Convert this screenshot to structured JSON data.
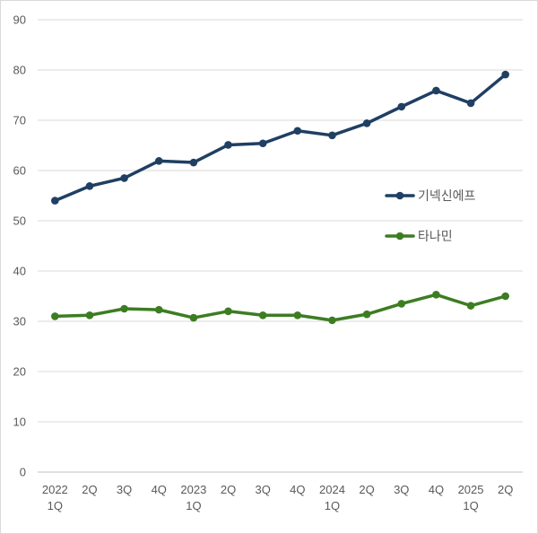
{
  "chart_data": {
    "type": "line",
    "title": "",
    "xlabel": "",
    "ylabel": "",
    "ylim": [
      0,
      90
    ],
    "yticks": [
      0,
      10,
      20,
      30,
      40,
      50,
      60,
      70,
      80,
      90
    ],
    "grid": true,
    "legend_position": "right",
    "categories": [
      [
        "2022",
        "1Q"
      ],
      [
        "2Q"
      ],
      [
        "3Q"
      ],
      [
        "4Q"
      ],
      [
        "2023",
        "1Q"
      ],
      [
        "2Q"
      ],
      [
        "3Q"
      ],
      [
        "4Q"
      ],
      [
        "2024",
        "1Q"
      ],
      [
        "2Q"
      ],
      [
        "3Q"
      ],
      [
        "4Q"
      ],
      [
        "2025",
        "1Q"
      ],
      [
        "2Q"
      ]
    ],
    "series": [
      {
        "name": "기넥신에프",
        "color": "#1f3f63",
        "values": [
          54.0,
          56.9,
          58.5,
          61.9,
          61.6,
          65.1,
          65.4,
          67.9,
          67.0,
          69.4,
          72.7,
          75.9,
          73.4,
          79.1
        ]
      },
      {
        "name": "타나민",
        "color": "#3c7d22",
        "values": [
          31.0,
          31.2,
          32.5,
          32.3,
          30.7,
          32.0,
          31.2,
          31.2,
          30.2,
          31.4,
          33.5,
          35.3,
          33.1,
          35.0
        ]
      }
    ]
  }
}
